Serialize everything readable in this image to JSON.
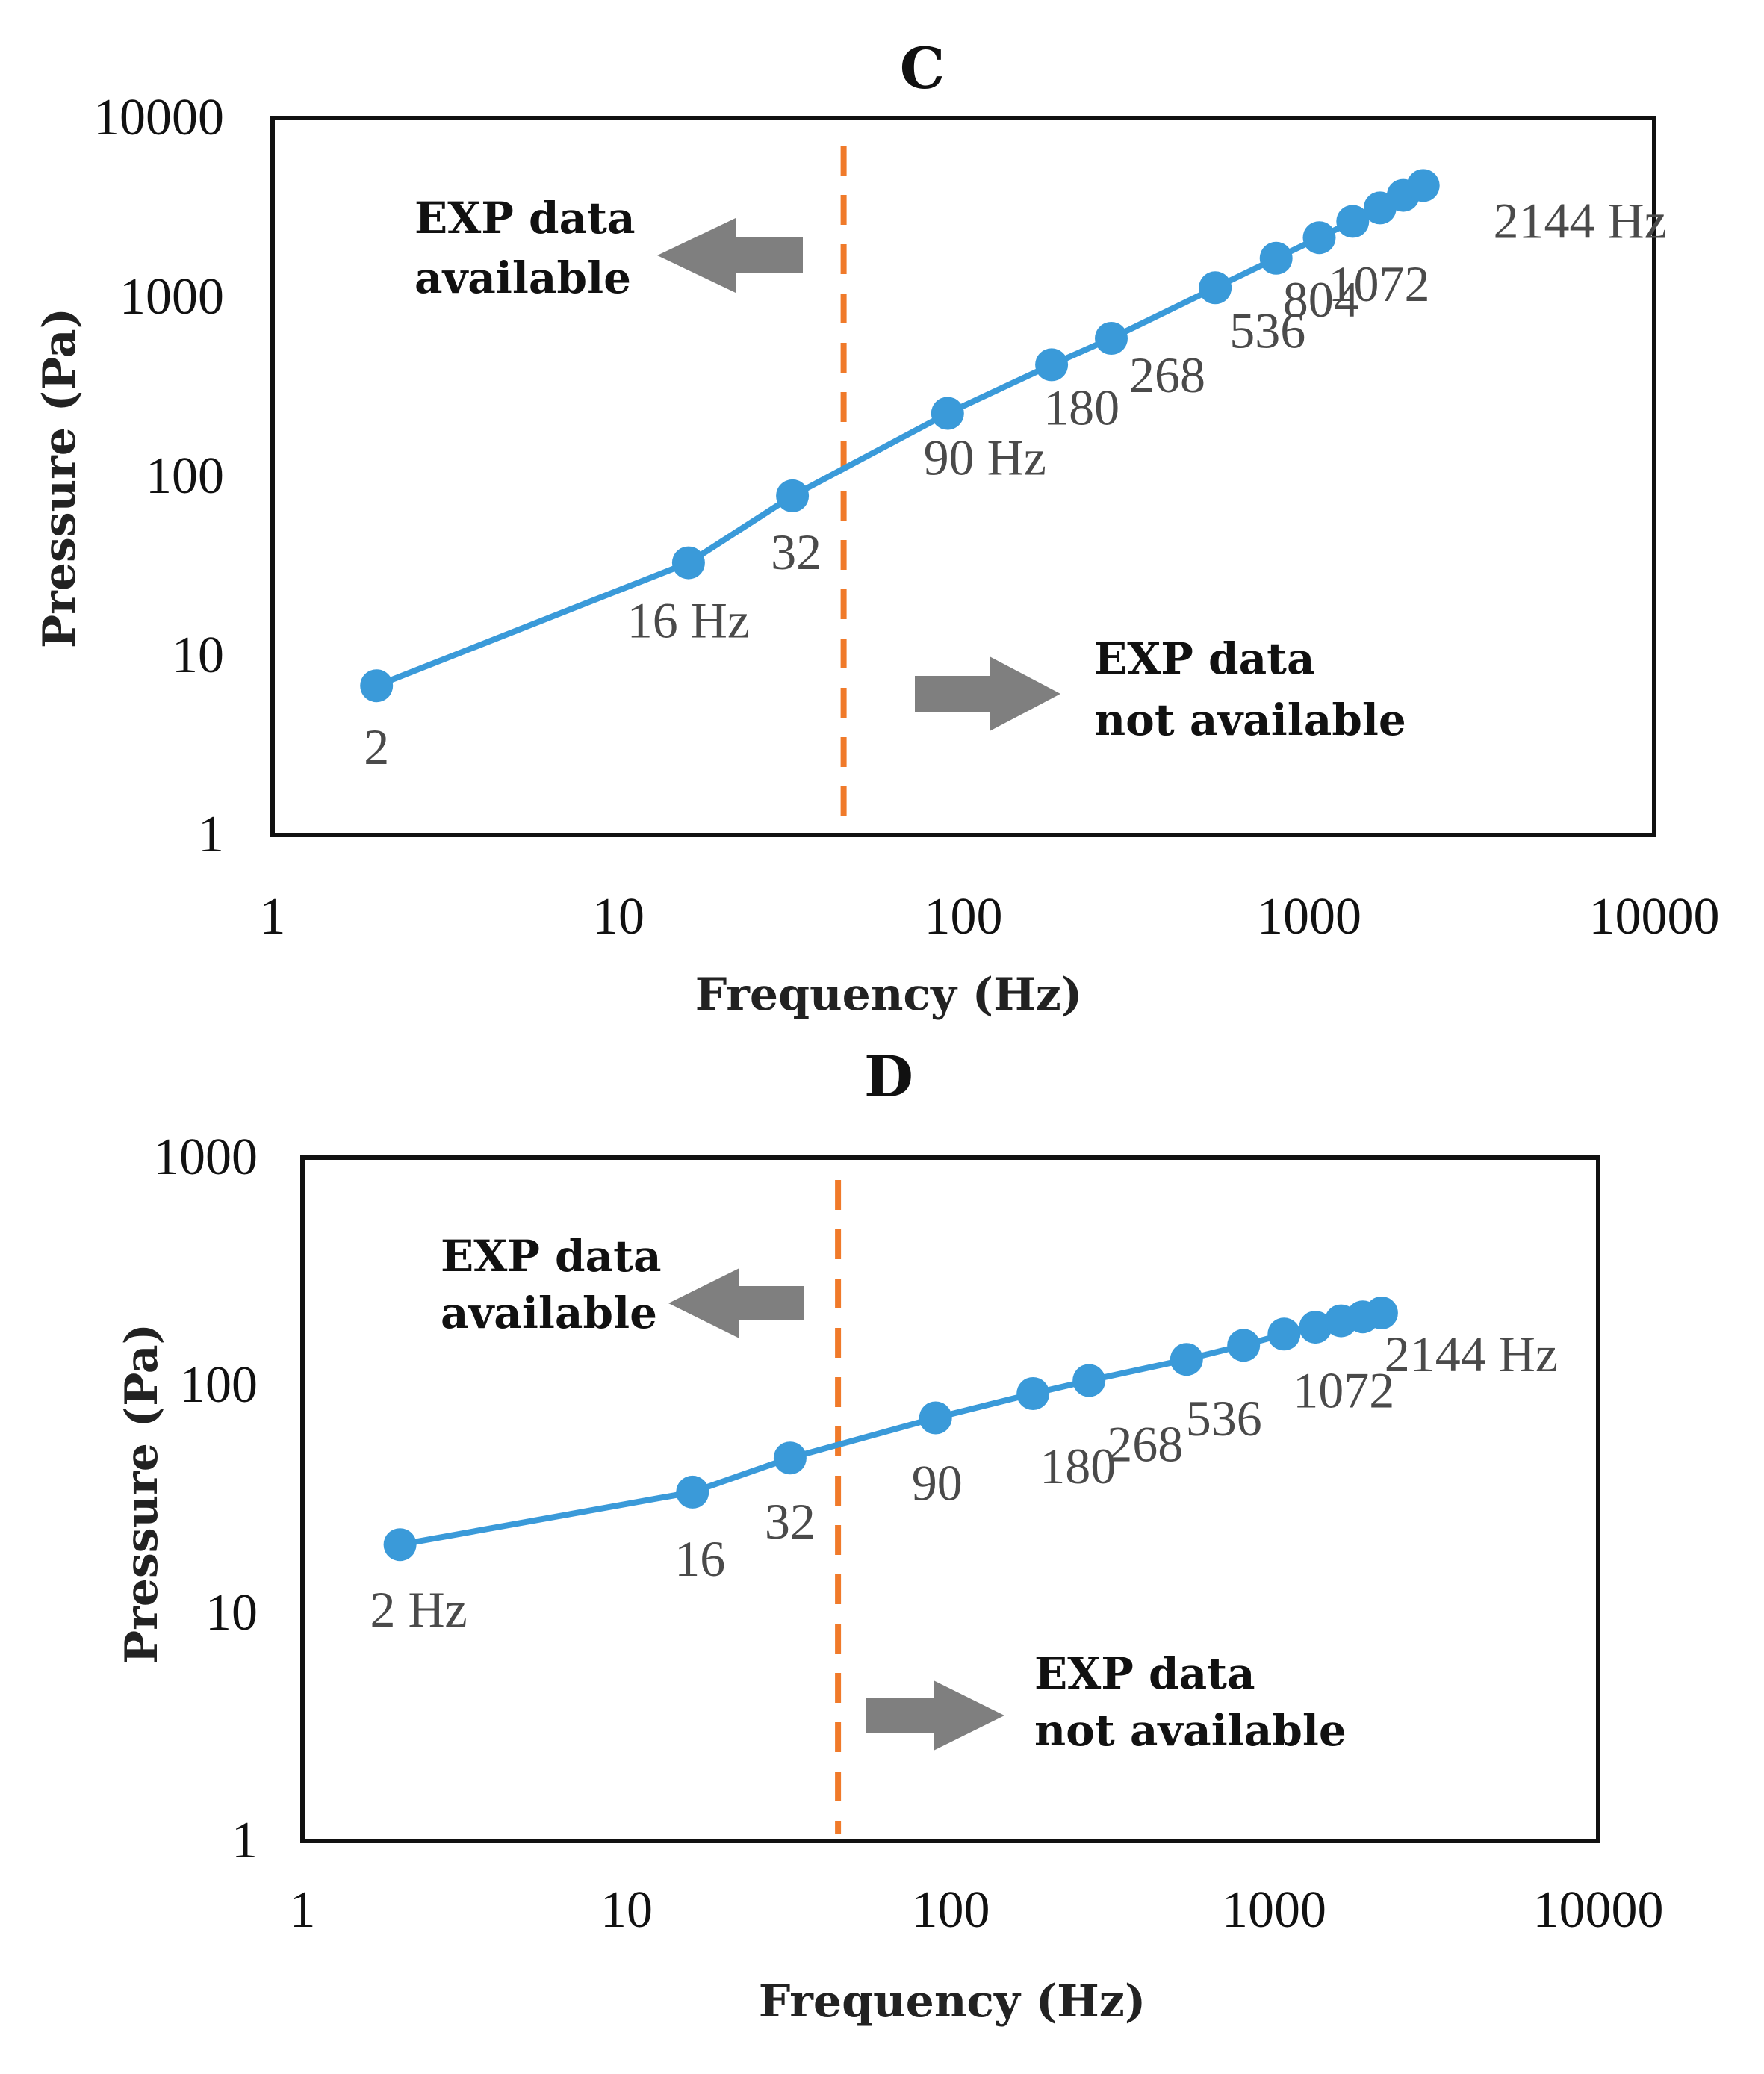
{
  "chart_data": [
    {
      "type": "line",
      "title": "C",
      "xlabel": "Frequency (Hz)",
      "ylabel": "Pressure (Pa)",
      "xscale": "log",
      "yscale": "log",
      "xlim": [
        1,
        10000
      ],
      "ylim": [
        1,
        10000
      ],
      "x_ticks": [
        "1",
        "10",
        "100",
        "1000",
        "10000"
      ],
      "y_ticks": [
        "1",
        "10",
        "100",
        "1000",
        "10000"
      ],
      "grid": false,
      "series": [
        {
          "name": "Pressure",
          "x": [
            2,
            16,
            32,
            90,
            180,
            268,
            536,
            804,
            1072,
            1340,
            1608,
            1876,
            2144
          ],
          "y": [
            6.8,
            33,
            78,
            225,
            420,
            590,
            1130,
            1650,
            2150,
            2650,
            3150,
            3700,
            4200
          ]
        }
      ],
      "point_labels": [
        {
          "text": "2",
          "x": 2
        },
        {
          "text": "16 Hz",
          "x": 16
        },
        {
          "text": "32",
          "x": 32
        },
        {
          "text": "90 Hz",
          "x": 90
        },
        {
          "text": "180",
          "x": 180
        },
        {
          "text": "268",
          "x": 268
        },
        {
          "text": "536",
          "x": 536
        },
        {
          "text": "804",
          "x": 804
        },
        {
          "text": "1072",
          "x": 1072
        },
        {
          "text": "2144 Hz",
          "x": 2144
        }
      ],
      "cutoff_frequency": 45,
      "annotations": {
        "left_line1": "EXP data",
        "left_line2": "available",
        "right_line1": "EXP data",
        "right_line2": "not available"
      }
    },
    {
      "type": "line",
      "title": "D",
      "xlabel": "Frequency (Hz)",
      "ylabel": "Pressure  (Pa)",
      "xscale": "log",
      "yscale": "log",
      "xlim": [
        1,
        10000
      ],
      "ylim": [
        1,
        1000
      ],
      "x_ticks": [
        "1",
        "10",
        "100",
        "1000",
        "10000"
      ],
      "y_ticks": [
        "1",
        "10",
        "100",
        "1000"
      ],
      "grid": false,
      "series": [
        {
          "name": "Pressure",
          "x": [
            2,
            16,
            32,
            90,
            180,
            268,
            536,
            804,
            1072,
            1340,
            1608,
            1876,
            2144
          ],
          "y": [
            20,
            34,
            48,
            72,
            92,
            105,
            130,
            150,
            168,
            180,
            192,
            200,
            208
          ]
        }
      ],
      "point_labels": [
        {
          "text": "2 Hz",
          "x": 2
        },
        {
          "text": "16",
          "x": 16
        },
        {
          "text": "32",
          "x": 32
        },
        {
          "text": "90",
          "x": 90
        },
        {
          "text": "180",
          "x": 180
        },
        {
          "text": "268",
          "x": 268
        },
        {
          "text": "536",
          "x": 536
        },
        {
          "text": "1072",
          "x": 1072
        },
        {
          "text": "2144 Hz",
          "x": 2144
        }
      ],
      "cutoff_frequency": 45,
      "annotations": {
        "left_line1": "EXP data",
        "left_line2": "available",
        "right_line1": "EXP data",
        "right_line2": "not available"
      }
    }
  ],
  "colors": {
    "series": "#3a9ad9",
    "cutoff": "#f07a2a",
    "arrow": "#7f7f7f"
  }
}
